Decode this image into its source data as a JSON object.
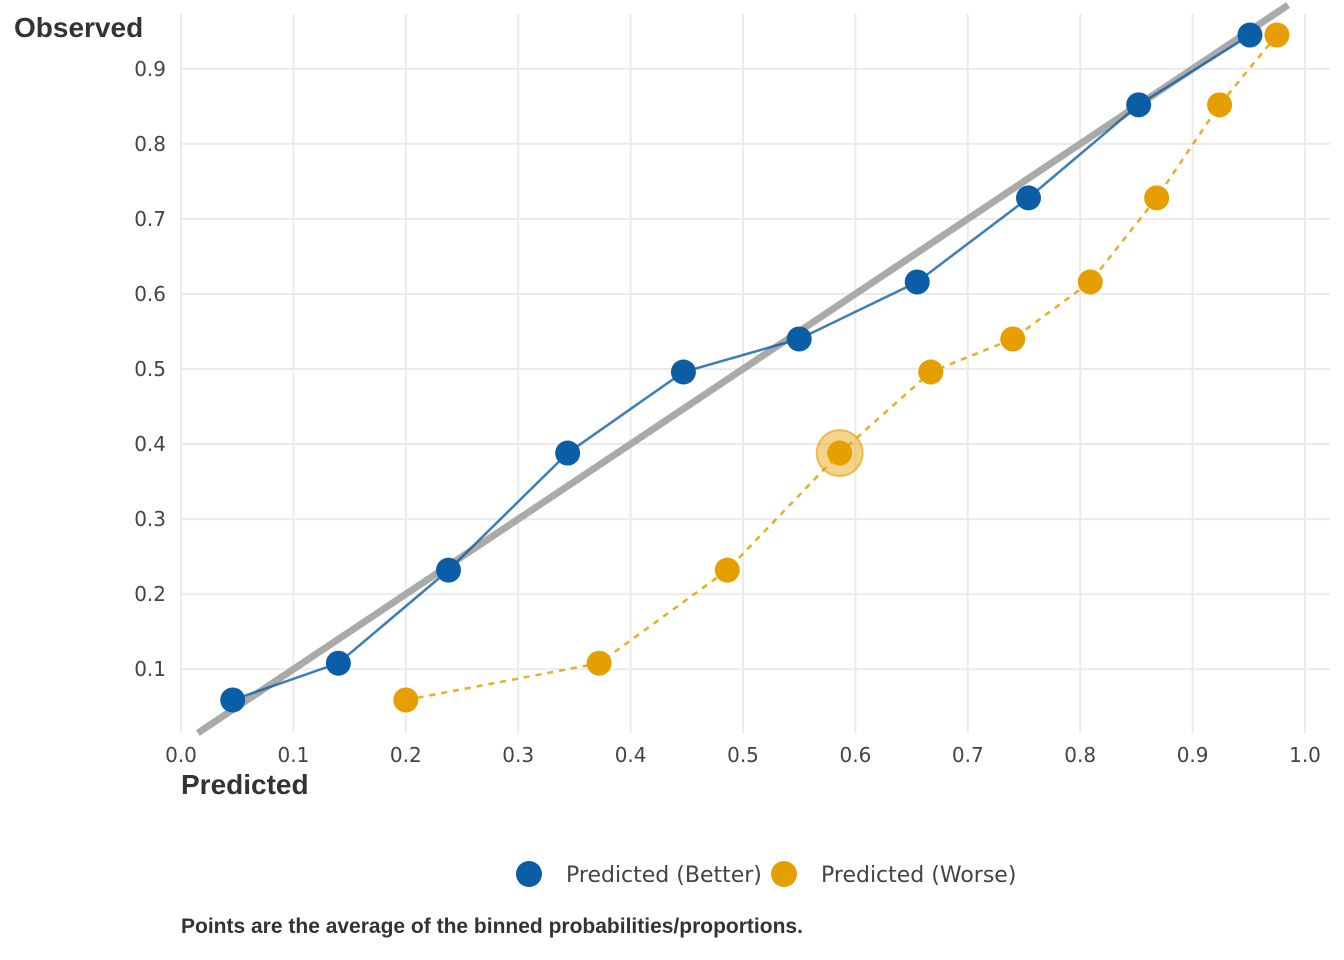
{
  "chart_data": {
    "type": "line",
    "xlabel": "Predicted",
    "ylabel": "Observed",
    "caption": "Points are the average of the binned probabilities/proportions.",
    "xlim": [
      0,
      1
    ],
    "ylim": [
      0.015,
      0.985
    ],
    "x_ticks": [
      "0.0",
      "0.1",
      "0.2",
      "0.3",
      "0.4",
      "0.5",
      "0.6",
      "0.7",
      "0.8",
      "0.9",
      "1.0"
    ],
    "y_ticks": [
      "0.1",
      "0.2",
      "0.3",
      "0.4",
      "0.5",
      "0.6",
      "0.7",
      "0.8",
      "0.9"
    ],
    "grid": true,
    "reference_line": "y = x",
    "legend_position": "bottom",
    "highlight": {
      "series": 1,
      "index": 3
    },
    "series": [
      {
        "name": "Predicted (Better)",
        "color": "#0b5ea6",
        "line_style": "solid",
        "x": [
          0.046,
          0.14,
          0.238,
          0.344,
          0.447,
          0.55,
          0.655,
          0.754,
          0.852,
          0.951
        ],
        "y": [
          0.059,
          0.108,
          0.232,
          0.388,
          0.496,
          0.54,
          0.616,
          0.728,
          0.852,
          0.945
        ]
      },
      {
        "name": "Predicted (Worse)",
        "color": "#e69f00",
        "line_style": "dashed",
        "x": [
          0.2,
          0.372,
          0.486,
          0.586,
          0.667,
          0.74,
          0.809,
          0.868,
          0.924,
          0.975
        ],
        "y": [
          0.059,
          0.108,
          0.232,
          0.388,
          0.496,
          0.54,
          0.616,
          0.728,
          0.852,
          0.945
        ]
      }
    ]
  }
}
